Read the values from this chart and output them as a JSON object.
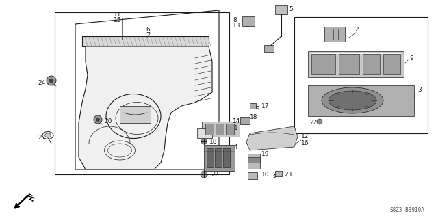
{
  "bg_color": "#ffffff",
  "line_color": "#1a1a1a",
  "diagram_code": "S8Z3-B3910A",
  "figsize": [
    6.4,
    3.19
  ],
  "dpi": 100
}
